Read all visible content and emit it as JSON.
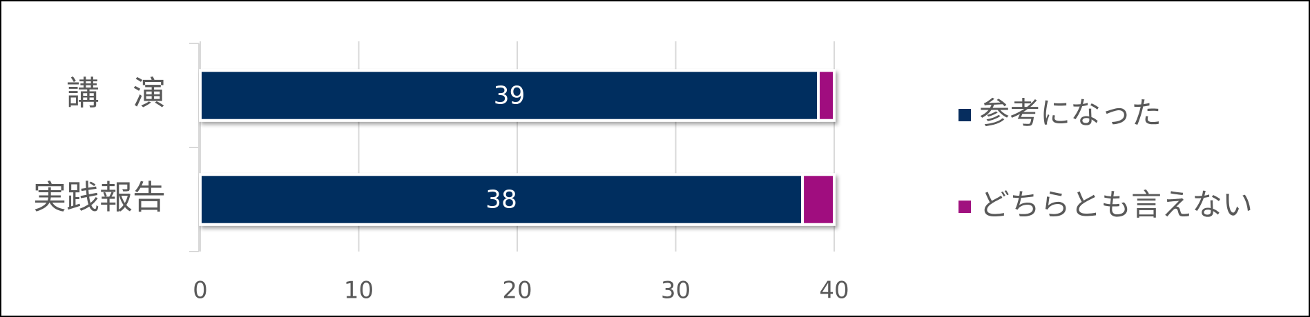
{
  "chart_data": {
    "type": "stacked_barh",
    "categories": [
      "講　演",
      "実践報告"
    ],
    "series": [
      {
        "name": "参考になった",
        "color": "#062d5e",
        "values": [
          39,
          38
        ],
        "data_labels": true
      },
      {
        "name": "どちらとも言えない",
        "color": "#a0117f",
        "values": [
          1,
          2
        ],
        "data_labels": false
      }
    ],
    "xlim": [
      0,
      40
    ],
    "xticks": [
      0,
      10,
      20,
      30,
      40
    ],
    "grid": true,
    "legend": "right"
  }
}
